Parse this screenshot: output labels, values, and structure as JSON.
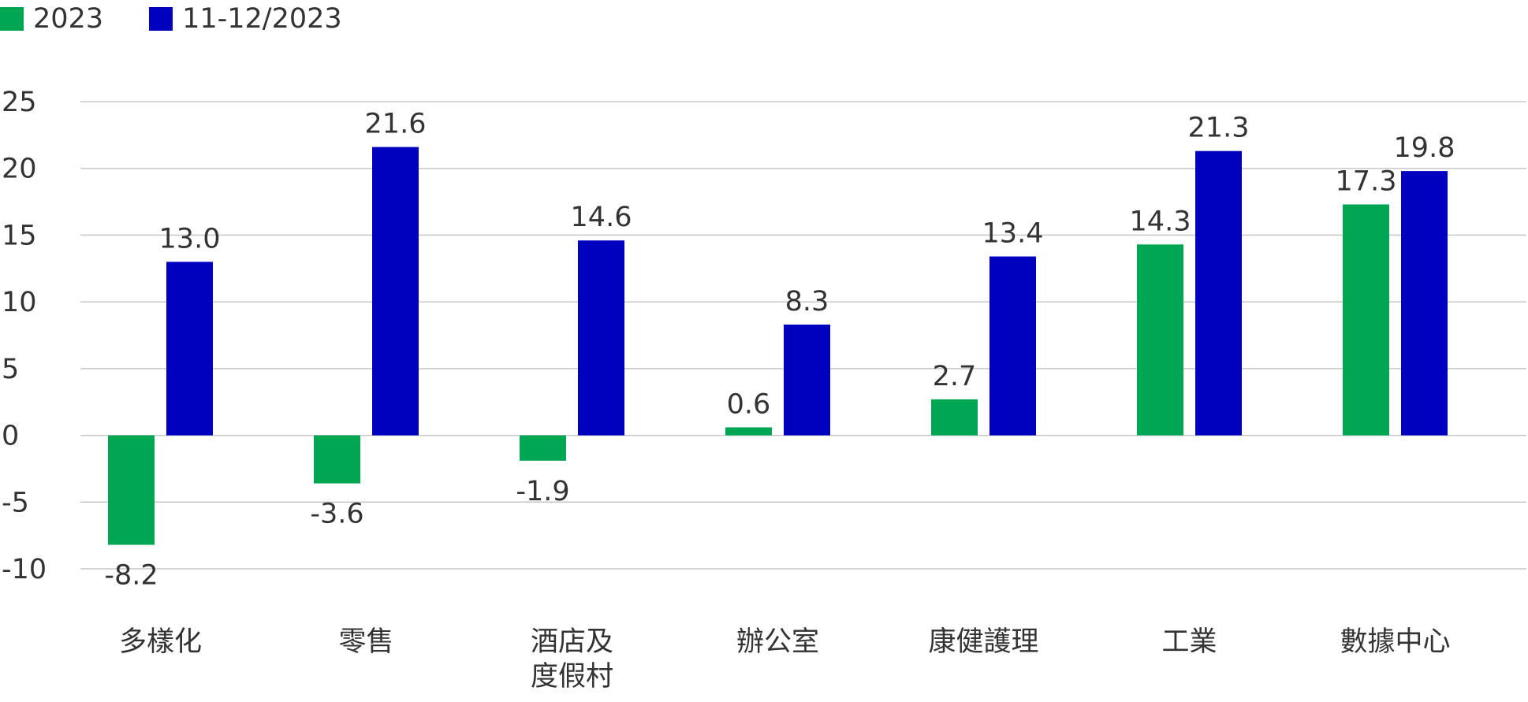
{
  "colors": {
    "series_2023": "#00A651",
    "series_nov_dec": "#0000BF",
    "grid": "#C8C8C8",
    "text": "#333333"
  },
  "legend": [
    {
      "label": "2023",
      "color": "#00A651"
    },
    {
      "label": "11-12/2023",
      "color": "#0000BF"
    }
  ],
  "chart_data": {
    "type": "bar",
    "categories": [
      [
        "多樣化"
      ],
      [
        "零售"
      ],
      [
        "酒店及",
        "度假村"
      ],
      [
        "辦公室"
      ],
      [
        "康健護理"
      ],
      [
        "工業"
      ],
      [
        "數據中心"
      ]
    ],
    "series": [
      {
        "name": "2023",
        "color": "#00A651",
        "values": [
          -8.2,
          -3.6,
          -1.9,
          0.6,
          2.7,
          14.3,
          17.3
        ],
        "labels": [
          "-8.2",
          "-3.6",
          "-1.9",
          "0.6",
          "2.7",
          "14.3",
          "17.3"
        ]
      },
      {
        "name": "11-12/2023",
        "color": "#0000BF",
        "values": [
          13.0,
          21.6,
          14.6,
          8.3,
          13.4,
          21.3,
          19.8
        ],
        "labels": [
          "13.0",
          "21.6",
          "14.6",
          "8.3",
          "13.4",
          "21.3",
          "19.8"
        ]
      }
    ],
    "ylim": [
      -10,
      25
    ],
    "yticks": [
      25,
      20,
      15,
      10,
      5,
      0,
      -5,
      -10
    ],
    "ytick_labels": [
      "25",
      "20",
      "15",
      "10",
      "5",
      "0",
      "-5",
      "-10"
    ],
    "grid": true,
    "legend_position": "top-left",
    "title": "",
    "xlabel": "",
    "ylabel": ""
  }
}
